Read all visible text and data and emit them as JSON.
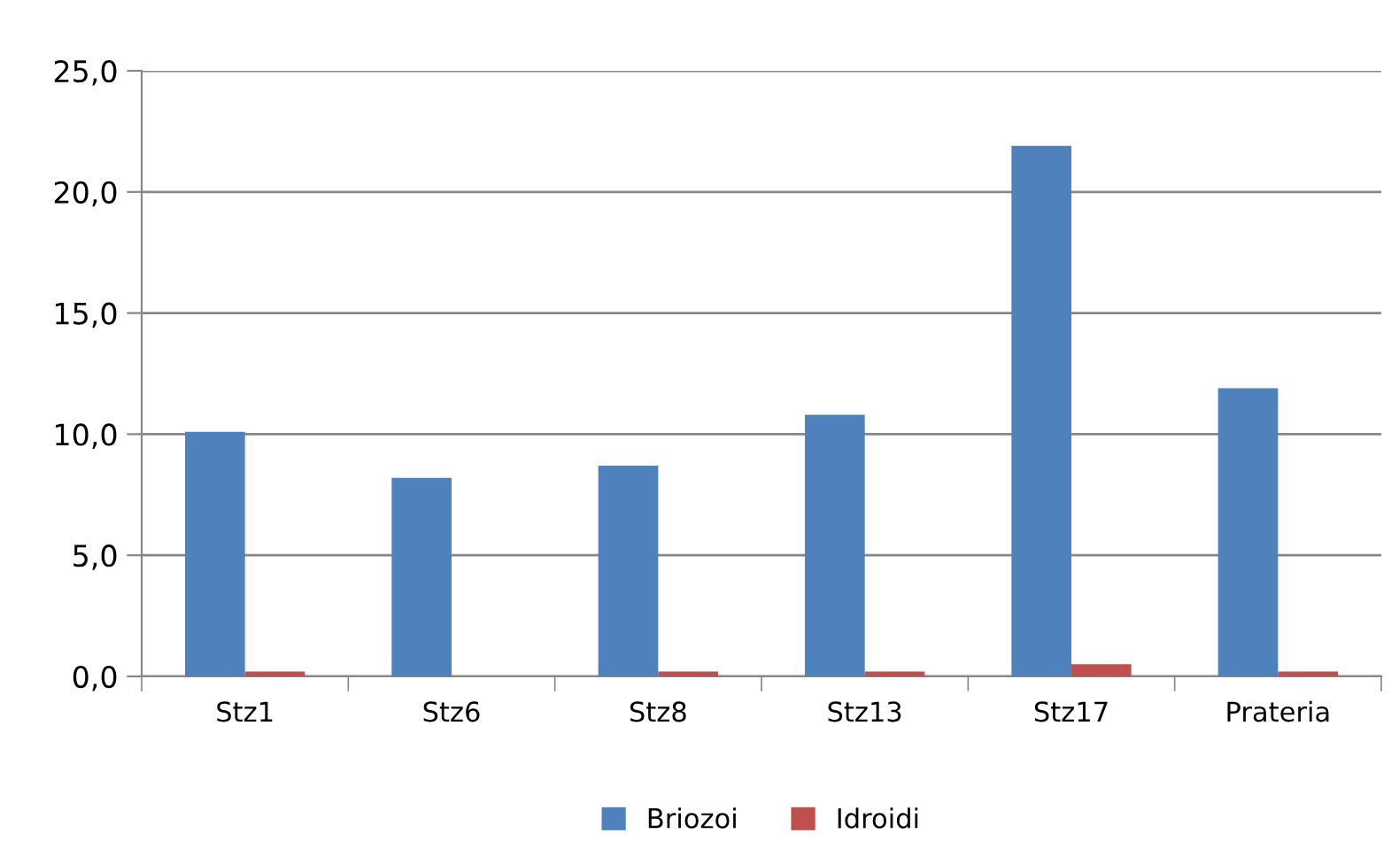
{
  "chart_data": {
    "type": "bar",
    "categories": [
      "Stz1",
      "Stz6",
      "Stz8",
      "Stz13",
      "Stz17",
      "Prateria"
    ],
    "series": [
      {
        "name": "Briozoi",
        "color": "#4f81bd",
        "values": [
          10.1,
          8.2,
          8.7,
          10.8,
          21.9,
          11.9
        ]
      },
      {
        "name": "Idroidi",
        "color": "#c0504d",
        "values": [
          0.2,
          0.0,
          0.2,
          0.2,
          0.5,
          0.2
        ]
      }
    ],
    "ylim": [
      0,
      25
    ],
    "yticks": [
      {
        "value": 0,
        "label": "0,0"
      },
      {
        "value": 5,
        "label": "5,0"
      },
      {
        "value": 10,
        "label": "10,0"
      },
      {
        "value": 15,
        "label": "15,0"
      },
      {
        "value": 20,
        "label": "20,0"
      },
      {
        "value": 25,
        "label": "25,0"
      }
    ],
    "grid": "y",
    "legend": "bottom"
  }
}
